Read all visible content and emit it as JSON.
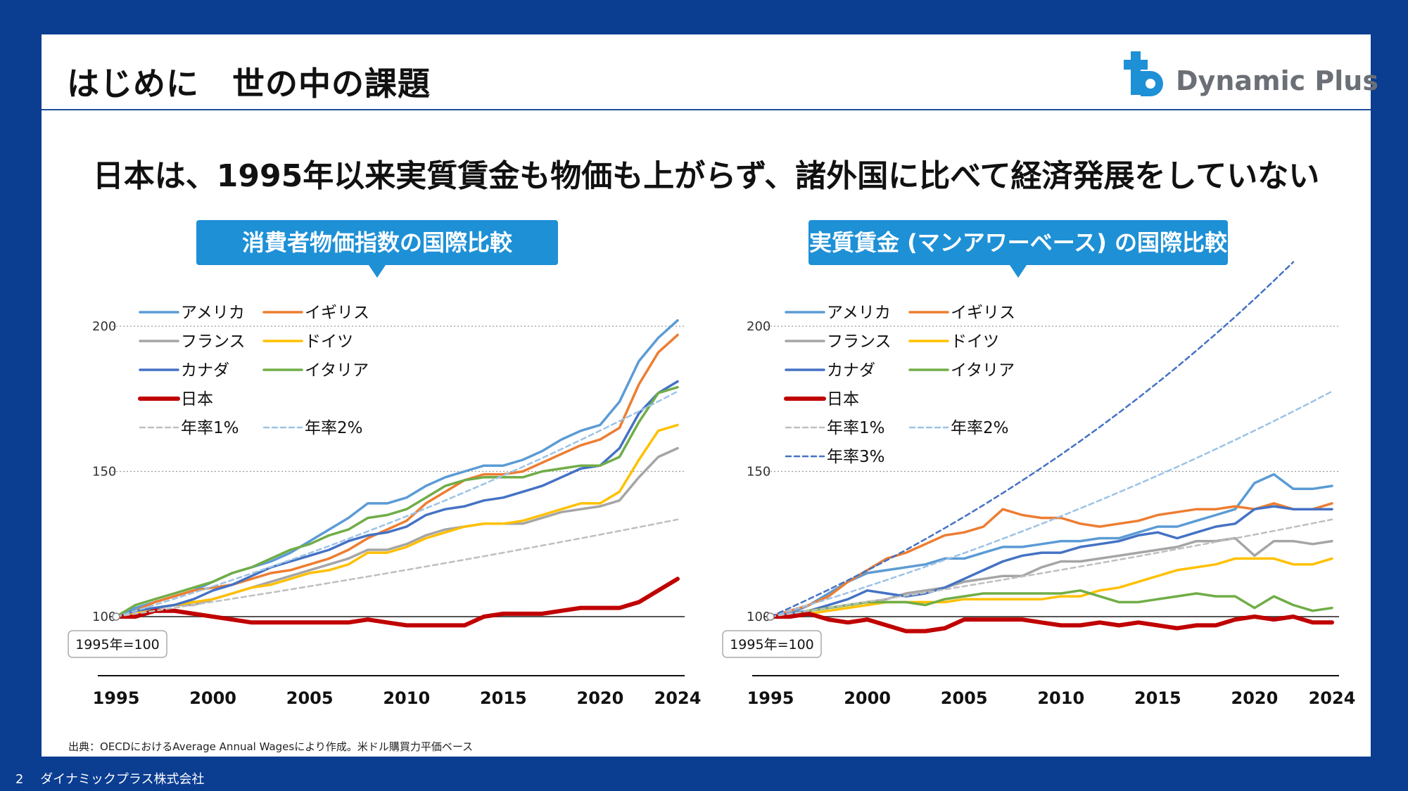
{
  "slide": {
    "title": "はじめに　世の中の課題",
    "logo_text": "Dynamic Plus",
    "logo_icon": "plus-d-logo-icon",
    "brand_color": "#1e90d6",
    "headline": "日本は、1995年以来実質賃金も物価も上がらず、諸外国に比べて経済発展をしていない",
    "source": "出典：OECDにおけるAverage Annual Wagesにより作成。米ドル購買力平価ベース",
    "page_number": "2",
    "company": "ダイナミックプラス株式会社"
  },
  "chart_data": [
    {
      "type": "line",
      "title": "消費者物価指数の国際比較",
      "baseline_label": "1995年=100",
      "x": [
        1995,
        1996,
        1997,
        1998,
        1999,
        2000,
        2001,
        2002,
        2003,
        2004,
        2005,
        2006,
        2007,
        2008,
        2009,
        2010,
        2011,
        2012,
        2013,
        2014,
        2015,
        2016,
        2017,
        2018,
        2019,
        2020,
        2021,
        2022,
        2023,
        2024
      ],
      "x_ticks": [
        "1995",
        "2000",
        "2005",
        "2010",
        "2015",
        "2020",
        "2024"
      ],
      "y_ticks": [
        "100",
        "150",
        "200"
      ],
      "ylim": [
        100,
        200
      ],
      "grid": true,
      "legend_placement": "top-left",
      "series": [
        {
          "name": "アメリカ",
          "color": "#5b9bd5",
          "style": "solid",
          "values": [
            100,
            103,
            105,
            107,
            109,
            112,
            115,
            117,
            119,
            122,
            126,
            130,
            134,
            139,
            139,
            141,
            145,
            148,
            150,
            152,
            152,
            154,
            157,
            161,
            164,
            166,
            174,
            188,
            196,
            202
          ]
        },
        {
          "name": "イギリス",
          "color": "#ed7d31",
          "style": "solid",
          "values": [
            100,
            102,
            105,
            107,
            109,
            110,
            111,
            113,
            115,
            116,
            118,
            120,
            123,
            127,
            130,
            133,
            139,
            143,
            147,
            149,
            149,
            150,
            153,
            156,
            159,
            161,
            165,
            180,
            191,
            197
          ]
        },
        {
          "name": "フランス",
          "color": "#a5a5a5",
          "style": "solid",
          "values": [
            100,
            102,
            103,
            104,
            104,
            106,
            108,
            110,
            112,
            114,
            116,
            118,
            120,
            123,
            123,
            125,
            128,
            130,
            131,
            132,
            132,
            132,
            134,
            136,
            137,
            138,
            140,
            148,
            155,
            158
          ]
        },
        {
          "name": "ドイツ",
          "color": "#ffc000",
          "style": "solid",
          "values": [
            100,
            101,
            103,
            104,
            105,
            106,
            108,
            110,
            111,
            113,
            115,
            116,
            118,
            122,
            122,
            124,
            127,
            129,
            131,
            132,
            132,
            133,
            135,
            137,
            139,
            139,
            143,
            154,
            164,
            166
          ]
        },
        {
          "name": "カナダ",
          "color": "#4472c4",
          "style": "solid",
          "values": [
            100,
            102,
            103,
            104,
            106,
            109,
            111,
            114,
            117,
            119,
            121,
            123,
            126,
            128,
            129,
            131,
            135,
            137,
            138,
            140,
            141,
            143,
            145,
            148,
            151,
            152,
            158,
            170,
            177,
            181
          ]
        },
        {
          "name": "イタリア",
          "color": "#70ad47",
          "style": "solid",
          "values": [
            100,
            104,
            106,
            108,
            110,
            112,
            115,
            117,
            120,
            123,
            125,
            128,
            130,
            134,
            135,
            137,
            141,
            145,
            147,
            148,
            148,
            148,
            150,
            151,
            152,
            152,
            155,
            167,
            177,
            179
          ]
        },
        {
          "name": "日本",
          "color": "#c00000",
          "style": "bold",
          "values": [
            100,
            100,
            102,
            102,
            101,
            100,
            99,
            98,
            98,
            98,
            98,
            98,
            98,
            99,
            98,
            97,
            97,
            97,
            97,
            100,
            101,
            101,
            101,
            102,
            103,
            103,
            103,
            105,
            109,
            113
          ]
        },
        {
          "name": "年率1%",
          "color": "#bfbfbf",
          "style": "dashed",
          "rate": 0.01
        },
        {
          "name": "年率2%",
          "color": "#9dc3e6",
          "style": "dashed",
          "rate": 0.02
        }
      ]
    },
    {
      "type": "line",
      "title": "実質賃金 (マンアワーベース) の国際比較",
      "baseline_label": "1995年=100",
      "x": [
        1995,
        1996,
        1997,
        1998,
        1999,
        2000,
        2001,
        2002,
        2003,
        2004,
        2005,
        2006,
        2007,
        2008,
        2009,
        2010,
        2011,
        2012,
        2013,
        2014,
        2015,
        2016,
        2017,
        2018,
        2019,
        2020,
        2021,
        2022,
        2023,
        2024
      ],
      "x_ticks": [
        "1995",
        "2000",
        "2005",
        "2010",
        "2015",
        "2020",
        "2024"
      ],
      "y_ticks": [
        "100",
        "150",
        "200"
      ],
      "ylim": [
        100,
        200
      ],
      "grid": true,
      "legend_placement": "top-left",
      "series": [
        {
          "name": "アメリカ",
          "color": "#5b9bd5",
          "style": "solid",
          "values": [
            100,
            101,
            104,
            108,
            112,
            115,
            116,
            117,
            118,
            120,
            120,
            122,
            124,
            124,
            125,
            126,
            126,
            127,
            127,
            129,
            131,
            131,
            133,
            135,
            137,
            146,
            149,
            144,
            144,
            145
          ]
        },
        {
          "name": "イギリス",
          "color": "#ed7d31",
          "style": "solid",
          "values": [
            100,
            102,
            104,
            107,
            112,
            116,
            120,
            122,
            125,
            128,
            129,
            131,
            137,
            135,
            134,
            134,
            132,
            131,
            132,
            133,
            135,
            136,
            137,
            137,
            138,
            137,
            139,
            137,
            137,
            139
          ]
        },
        {
          "name": "フランス",
          "color": "#a5a5a5",
          "style": "solid",
          "values": [
            100,
            101,
            102,
            103,
            104,
            105,
            106,
            108,
            109,
            110,
            112,
            113,
            114,
            114,
            117,
            119,
            119,
            120,
            121,
            122,
            123,
            124,
            126,
            126,
            127,
            121,
            126,
            126,
            125,
            126
          ]
        },
        {
          "name": "ドイツ",
          "color": "#ffc000",
          "style": "solid",
          "values": [
            100,
            100,
            101,
            102,
            103,
            104,
            105,
            105,
            105,
            105,
            106,
            106,
            106,
            106,
            106,
            107,
            107,
            109,
            110,
            112,
            114,
            116,
            117,
            118,
            120,
            120,
            120,
            118,
            118,
            120
          ]
        },
        {
          "name": "カナダ",
          "color": "#4472c4",
          "style": "solid",
          "values": [
            100,
            101,
            102,
            104,
            106,
            109,
            108,
            107,
            108,
            110,
            113,
            116,
            119,
            121,
            122,
            122,
            124,
            125,
            126,
            128,
            129,
            127,
            129,
            131,
            132,
            137,
            138,
            137,
            137,
            137
          ]
        },
        {
          "name": "イタリア",
          "color": "#70ad47",
          "style": "solid",
          "values": [
            100,
            100,
            102,
            103,
            104,
            105,
            105,
            105,
            104,
            106,
            107,
            108,
            108,
            108,
            108,
            108,
            109,
            107,
            105,
            105,
            106,
            107,
            108,
            107,
            107,
            103,
            107,
            104,
            102,
            103
          ]
        },
        {
          "name": "日本",
          "color": "#c00000",
          "style": "bold",
          "values": [
            100,
            100,
            101,
            99,
            98,
            99,
            97,
            95,
            95,
            96,
            99,
            99,
            99,
            99,
            98,
            97,
            97,
            98,
            97,
            98,
            97,
            96,
            97,
            97,
            99,
            100,
            99,
            100,
            98,
            98
          ]
        },
        {
          "name": "年率1%",
          "color": "#bfbfbf",
          "style": "dashed",
          "rate": 0.01
        },
        {
          "name": "年率2%",
          "color": "#9dc3e6",
          "style": "dashed",
          "rate": 0.02
        },
        {
          "name": "年率3%",
          "color": "#4472c4",
          "style": "dashed",
          "rate": 0.03
        }
      ]
    }
  ]
}
